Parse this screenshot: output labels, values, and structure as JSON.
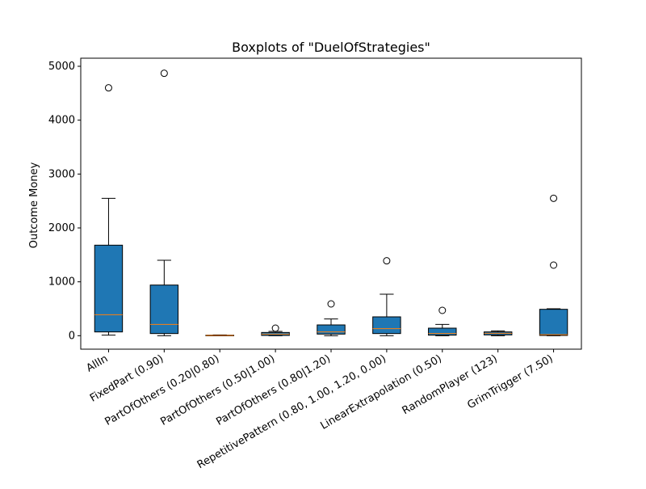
{
  "chart_data": {
    "type": "boxplot",
    "title": "Boxplots of \"DuelOfStrategies\"",
    "xlabel": "",
    "ylabel": "Outcome Money",
    "ylim": [
      -250,
      5150
    ],
    "yticks": [
      0,
      1000,
      2000,
      3000,
      4000,
      5000
    ],
    "grid": false,
    "box_color": "#1f77b4",
    "median_color": "#ff7f0e",
    "categories": [
      "AllIn",
      "FixedPart (0.90)",
      "PartOfOthers (0.20|0.80)",
      "PartOfOthers (0.50|1.00)",
      "PartOfOthers (0.80|1.20)",
      "RepetitivePattern (0.80, 1.00, 1.20, 0.00)",
      "LinearExtrapolation (0.50)",
      "RandomPlayer (123)",
      "GrimTrigger (7.50)"
    ],
    "boxes": [
      {
        "whislo": 10,
        "q1": 70,
        "median": 390,
        "q3": 1680,
        "whishi": 2550,
        "fliers": [
          4600
        ]
      },
      {
        "whislo": 0,
        "q1": 40,
        "median": 210,
        "q3": 940,
        "whishi": 1400,
        "fliers": [
          4870
        ]
      },
      {
        "whislo": 0,
        "q1": 0,
        "median": 5,
        "q3": 10,
        "whishi": 15,
        "fliers": []
      },
      {
        "whislo": 0,
        "q1": 5,
        "median": 30,
        "q3": 60,
        "whishi": 80,
        "fliers": [
          140
        ]
      },
      {
        "whislo": 0,
        "q1": 30,
        "median": 70,
        "q3": 200,
        "whishi": 310,
        "fliers": [
          590
        ]
      },
      {
        "whislo": 0,
        "q1": 40,
        "median": 130,
        "q3": 350,
        "whishi": 770,
        "fliers": [
          1390
        ]
      },
      {
        "whislo": 0,
        "q1": 10,
        "median": 40,
        "q3": 140,
        "whishi": 210,
        "fliers": [
          470
        ]
      },
      {
        "whislo": 0,
        "q1": 15,
        "median": 45,
        "q3": 70,
        "whishi": 90,
        "fliers": []
      },
      {
        "whislo": 0,
        "q1": 5,
        "median": 20,
        "q3": 490,
        "whishi": 500,
        "fliers": [
          1310,
          2550
        ]
      }
    ]
  }
}
